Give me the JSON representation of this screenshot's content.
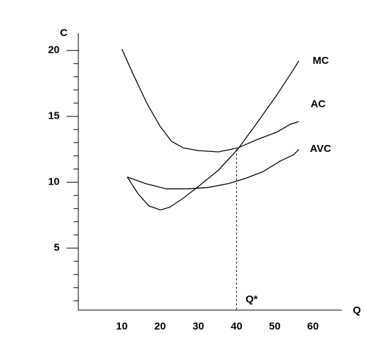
{
  "chart_data": {
    "type": "line",
    "y_label": "C",
    "x_label": "Q",
    "xlim": [
      -1.4,
      67.5
    ],
    "xticks": [
      10,
      20,
      30,
      40,
      50,
      60
    ],
    "ylim": [
      0.3,
      21.3
    ],
    "yticks": [
      5,
      10,
      15,
      20
    ],
    "minor_yticks": [
      1,
      2,
      3,
      4,
      6,
      7,
      8,
      9,
      11,
      12,
      13,
      14,
      16,
      17,
      18,
      19
    ],
    "series": [
      {
        "name": "MC",
        "color": "#000000",
        "x": [
          11.4,
          14.3,
          17.1,
          20.1,
          22.5,
          26.1,
          30.1,
          35.2,
          40.3,
          45.1,
          50.5,
          55,
          56.3
        ],
        "values": [
          10.4,
          9.1,
          8.2,
          7.9,
          8.1,
          8.8,
          9.7,
          10.9,
          12.5,
          14.4,
          16.6,
          18.6,
          19.2
        ]
      },
      {
        "name": "AC",
        "color": "#000000",
        "x": [
          10,
          13.1,
          16.7,
          20.1,
          23,
          26.1,
          30.1,
          35.2,
          40.3,
          45.1,
          50.5,
          54.1,
          56.3
        ],
        "values": [
          20.1,
          18.1,
          15.9,
          14.2,
          13.1,
          12.6,
          12.4,
          12.3,
          12.6,
          13.2,
          13.8,
          14.4,
          14.6
        ]
      },
      {
        "name": "AVC",
        "color": "#000000",
        "x": [
          11.4,
          16.2,
          21.6,
          27,
          32.5,
          37.9,
          42.4,
          46.9,
          51.4,
          55,
          56.3
        ],
        "values": [
          10.4,
          9.9,
          9.5,
          9.5,
          9.6,
          9.9,
          10.3,
          10.8,
          11.6,
          12.1,
          12.5
        ]
      }
    ],
    "marker_line": {
      "x": 40,
      "y": 12.5,
      "label": "Q*"
    }
  }
}
